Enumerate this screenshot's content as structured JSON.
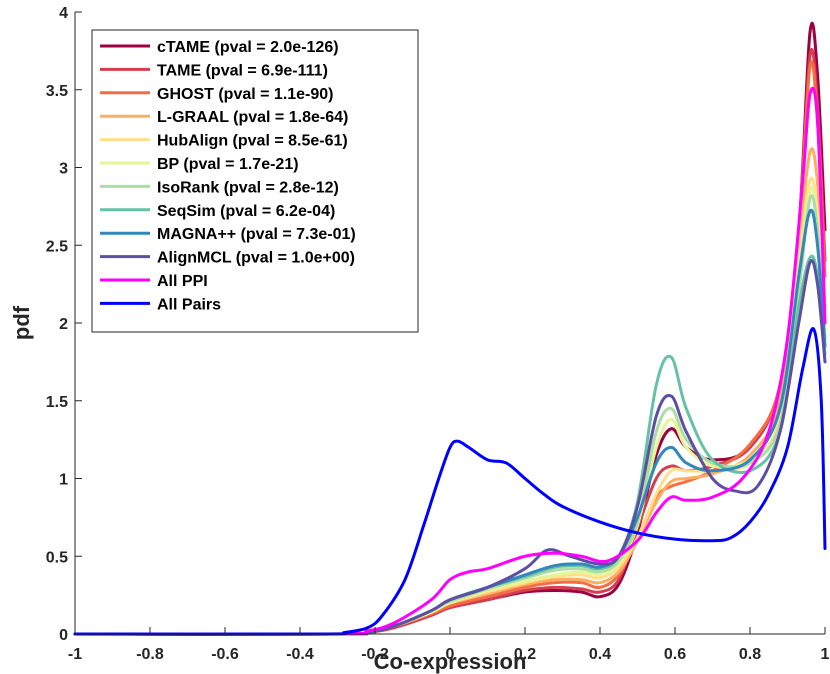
{
  "chart_data": {
    "type": "line",
    "title": "",
    "xlabel": "Co-expression",
    "ylabel": "pdf",
    "xlim": [
      -1,
      1
    ],
    "ylim": [
      0,
      4
    ],
    "xticks": [
      -1,
      -0.8,
      -0.6,
      -0.4,
      -0.2,
      0,
      0.2,
      0.4,
      0.6,
      0.8,
      1
    ],
    "xtick_labels": [
      "-1",
      "-0.8",
      "-0.6",
      "-0.4",
      "-0.2",
      "0",
      "0.2",
      "0.4",
      "0.6",
      "0.8",
      "1"
    ],
    "yticks": [
      0,
      0.5,
      1,
      1.5,
      2,
      2.5,
      3,
      3.5,
      4
    ],
    "ytick_labels": [
      "0",
      "0.5",
      "1",
      "1.5",
      "2",
      "2.5",
      "3",
      "3.5",
      "4"
    ],
    "grid": false,
    "legend_position": "top-left",
    "series": [
      {
        "name": "cTAME (pval = 2.0e-126)",
        "color": "#9e0142",
        "x": [
          -1,
          -0.3,
          -0.22,
          -0.15,
          -0.05,
          0.0,
          0.1,
          0.2,
          0.28,
          0.35,
          0.4,
          0.45,
          0.5,
          0.55,
          0.59,
          0.63,
          0.7,
          0.8,
          0.88,
          0.93,
          0.96,
          0.98,
          1.0
        ],
        "y": [
          0,
          0,
          0.01,
          0.04,
          0.12,
          0.17,
          0.22,
          0.27,
          0.28,
          0.27,
          0.24,
          0.32,
          0.65,
          1.15,
          1.32,
          1.2,
          1.12,
          1.2,
          1.6,
          2.6,
          3.87,
          3.6,
          2.6
        ]
      },
      {
        "name": "TAME (pval = 6.9e-111)",
        "color": "#d53e4f",
        "x": [
          -1,
          -0.3,
          -0.22,
          -0.15,
          -0.05,
          0.0,
          0.1,
          0.2,
          0.28,
          0.35,
          0.4,
          0.45,
          0.5,
          0.55,
          0.59,
          0.63,
          0.7,
          0.8,
          0.88,
          0.93,
          0.96,
          0.98,
          1.0
        ],
        "y": [
          0,
          0,
          0.01,
          0.04,
          0.12,
          0.17,
          0.22,
          0.28,
          0.3,
          0.29,
          0.27,
          0.35,
          0.68,
          1.0,
          1.08,
          1.05,
          1.08,
          1.2,
          1.6,
          2.6,
          3.72,
          3.4,
          2.4
        ]
      },
      {
        "name": "GHOST (pval = 1.1e-90)",
        "color": "#f46d43",
        "x": [
          -1,
          -0.3,
          -0.22,
          -0.15,
          -0.05,
          0.0,
          0.1,
          0.2,
          0.28,
          0.35,
          0.4,
          0.45,
          0.5,
          0.55,
          0.59,
          0.63,
          0.7,
          0.8,
          0.88,
          0.93,
          0.96,
          0.98,
          1.0
        ],
        "y": [
          0,
          0,
          0.01,
          0.05,
          0.13,
          0.18,
          0.24,
          0.3,
          0.33,
          0.33,
          0.3,
          0.38,
          0.62,
          0.88,
          0.95,
          0.98,
          1.05,
          1.22,
          1.6,
          2.6,
          3.65,
          3.3,
          2.3
        ]
      },
      {
        "name": "L-GRAAL (pval = 1.8e-64)",
        "color": "#fdae61",
        "x": [
          -1,
          -0.3,
          -0.22,
          -0.15,
          -0.05,
          0.0,
          0.1,
          0.2,
          0.28,
          0.35,
          0.4,
          0.45,
          0.5,
          0.55,
          0.59,
          0.63,
          0.7,
          0.8,
          0.88,
          0.93,
          0.96,
          0.98,
          1.0
        ],
        "y": [
          0,
          0,
          0.01,
          0.05,
          0.14,
          0.2,
          0.26,
          0.32,
          0.35,
          0.35,
          0.33,
          0.4,
          0.6,
          0.85,
          0.98,
          1.0,
          1.03,
          1.15,
          1.5,
          2.5,
          3.1,
          2.9,
          2.1
        ]
      },
      {
        "name": "HubAlign (pval = 8.5e-61)",
        "color": "#fee08b",
        "x": [
          -1,
          -0.3,
          -0.22,
          -0.15,
          -0.05,
          0.0,
          0.1,
          0.2,
          0.28,
          0.35,
          0.4,
          0.45,
          0.5,
          0.55,
          0.59,
          0.63,
          0.7,
          0.8,
          0.88,
          0.93,
          0.96,
          0.98,
          1.0
        ],
        "y": [
          0,
          0,
          0.01,
          0.05,
          0.14,
          0.2,
          0.27,
          0.33,
          0.37,
          0.38,
          0.36,
          0.43,
          0.62,
          0.9,
          1.05,
          1.05,
          1.05,
          1.1,
          1.4,
          2.4,
          2.92,
          2.7,
          2.0
        ]
      },
      {
        "name": "BP (pval = 1.7e-21)",
        "color": "#e6f598",
        "x": [
          -1,
          -0.3,
          -0.22,
          -0.15,
          -0.05,
          0.0,
          0.1,
          0.2,
          0.28,
          0.35,
          0.4,
          0.45,
          0.5,
          0.55,
          0.59,
          0.63,
          0.7,
          0.8,
          0.88,
          0.93,
          0.96,
          0.98,
          1.0
        ],
        "y": [
          0,
          0,
          0.01,
          0.05,
          0.14,
          0.2,
          0.28,
          0.34,
          0.38,
          0.4,
          0.38,
          0.45,
          0.7,
          1.2,
          1.38,
          1.2,
          1.08,
          1.12,
          1.35,
          2.2,
          2.85,
          2.65,
          1.95
        ]
      },
      {
        "name": "IsoRank (pval = 2.8e-12)",
        "color": "#abdda4",
        "x": [
          -1,
          -0.3,
          -0.22,
          -0.15,
          -0.05,
          0.0,
          0.1,
          0.2,
          0.28,
          0.35,
          0.4,
          0.45,
          0.5,
          0.55,
          0.59,
          0.63,
          0.7,
          0.8,
          0.88,
          0.93,
          0.96,
          0.98,
          1.0
        ],
        "y": [
          0,
          0,
          0.01,
          0.05,
          0.15,
          0.21,
          0.29,
          0.36,
          0.41,
          0.42,
          0.4,
          0.47,
          0.72,
          1.3,
          1.45,
          1.25,
          1.1,
          1.1,
          1.35,
          2.2,
          2.8,
          2.6,
          1.9
        ]
      },
      {
        "name": "SeqSim (pval = 6.2e-04)",
        "color": "#66c2a5",
        "x": [
          -1,
          -0.3,
          -0.22,
          -0.15,
          -0.05,
          0.0,
          0.1,
          0.2,
          0.28,
          0.35,
          0.4,
          0.45,
          0.5,
          0.55,
          0.59,
          0.63,
          0.7,
          0.8,
          0.88,
          0.93,
          0.96,
          0.98,
          1.0
        ],
        "y": [
          0,
          0,
          0.01,
          0.05,
          0.15,
          0.22,
          0.3,
          0.37,
          0.43,
          0.44,
          0.42,
          0.5,
          0.85,
          1.6,
          1.78,
          1.45,
          1.12,
          1.05,
          1.3,
          2.1,
          2.42,
          2.3,
          1.8
        ]
      },
      {
        "name": "MAGNA++ (pval = 7.3e-01)",
        "color": "#3288bd",
        "x": [
          -1,
          -0.3,
          -0.22,
          -0.15,
          -0.05,
          0.0,
          0.1,
          0.2,
          0.28,
          0.35,
          0.4,
          0.45,
          0.5,
          0.55,
          0.59,
          0.63,
          0.7,
          0.8,
          0.88,
          0.93,
          0.96,
          0.98,
          1.0
        ],
        "y": [
          0,
          0,
          0.01,
          0.05,
          0.15,
          0.22,
          0.3,
          0.38,
          0.44,
          0.45,
          0.43,
          0.5,
          0.75,
          1.1,
          1.2,
          1.1,
          1.05,
          1.12,
          1.45,
          2.3,
          2.72,
          2.5,
          1.85
        ]
      },
      {
        "name": "AlignMCL (pval = 1.0e+00)",
        "color": "#5e4fa2",
        "x": [
          -1,
          -0.3,
          -0.22,
          -0.15,
          -0.05,
          0.0,
          0.1,
          0.2,
          0.26,
          0.32,
          0.4,
          0.45,
          0.5,
          0.55,
          0.59,
          0.63,
          0.7,
          0.76,
          0.82,
          0.88,
          0.93,
          0.96,
          0.98,
          1.0
        ],
        "y": [
          0,
          0,
          0.01,
          0.05,
          0.15,
          0.22,
          0.3,
          0.42,
          0.54,
          0.5,
          0.45,
          0.5,
          0.82,
          1.4,
          1.53,
          1.3,
          1.0,
          0.92,
          0.95,
          1.3,
          2.0,
          2.39,
          2.25,
          1.75
        ]
      },
      {
        "name": "All PPI",
        "color": "#ff00ff",
        "x": [
          -1,
          -0.3,
          -0.22,
          -0.15,
          -0.05,
          0.0,
          0.05,
          0.1,
          0.2,
          0.28,
          0.35,
          0.42,
          0.5,
          0.55,
          0.59,
          0.63,
          0.7,
          0.78,
          0.85,
          0.9,
          0.94,
          0.96,
          0.98,
          1.0
        ],
        "y": [
          0,
          0,
          0.02,
          0.07,
          0.22,
          0.35,
          0.4,
          0.42,
          0.5,
          0.52,
          0.5,
          0.47,
          0.6,
          0.78,
          0.88,
          0.86,
          0.88,
          1.0,
          1.3,
          1.9,
          2.9,
          3.47,
          3.3,
          2.0
        ]
      },
      {
        "name": "All Pairs",
        "color": "#0000ff",
        "x": [
          -1,
          -0.35,
          -0.28,
          -0.22,
          -0.18,
          -0.12,
          -0.07,
          -0.03,
          0.0,
          0.02,
          0.05,
          0.1,
          0.15,
          0.2,
          0.25,
          0.3,
          0.4,
          0.5,
          0.6,
          0.7,
          0.75,
          0.8,
          0.85,
          0.9,
          0.94,
          0.97,
          0.99,
          1.0
        ],
        "y": [
          0,
          0,
          0.01,
          0.04,
          0.12,
          0.35,
          0.7,
          1.0,
          1.2,
          1.24,
          1.2,
          1.12,
          1.1,
          1.0,
          0.9,
          0.82,
          0.72,
          0.65,
          0.61,
          0.6,
          0.62,
          0.72,
          0.9,
          1.2,
          1.7,
          1.96,
          1.5,
          0.55
        ]
      }
    ]
  }
}
